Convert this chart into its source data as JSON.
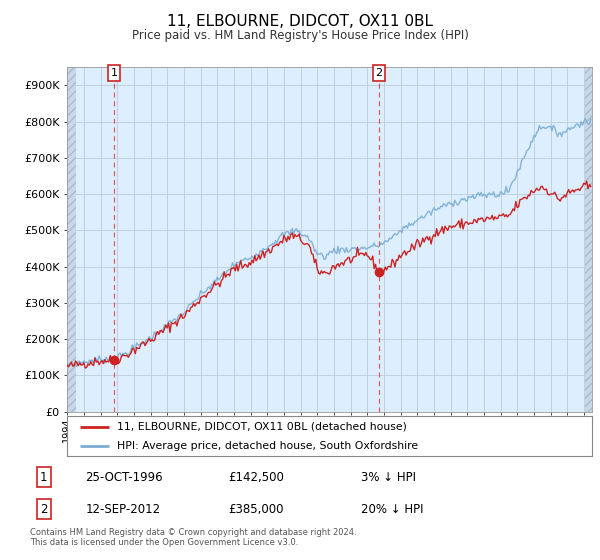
{
  "title": "11, ELBOURNE, DIDCOT, OX11 0BL",
  "subtitle": "Price paid vs. HM Land Registry's House Price Index (HPI)",
  "xlim_start": 1994.0,
  "xlim_end": 2025.5,
  "ylim_bottom": 0,
  "ylim_top": 950000,
  "yticks": [
    0,
    100000,
    200000,
    300000,
    400000,
    500000,
    600000,
    700000,
    800000,
    900000
  ],
  "ytick_labels": [
    "£0",
    "£100K",
    "£200K",
    "£300K",
    "£400K",
    "£500K",
    "£600K",
    "£700K",
    "£800K",
    "£900K"
  ],
  "hpi_color": "#7aadd4",
  "price_color": "#cc2222",
  "marker_color": "#cc2222",
  "plot_bg": "#ddeeff",
  "sale1_x": 1996.81,
  "sale1_y": 142500,
  "sale2_x": 2012.71,
  "sale2_y": 385000,
  "legend_line1": "11, ELBOURNE, DIDCOT, OX11 0BL (detached house)",
  "legend_line2": "HPI: Average price, detached house, South Oxfordshire",
  "annot1_label": "1",
  "annot2_label": "2",
  "annot1_date": "25-OCT-1996",
  "annot1_price": "£142,500",
  "annot1_hpi": "3% ↓ HPI",
  "annot2_date": "12-SEP-2012",
  "annot2_price": "£385,000",
  "annot2_hpi": "20% ↓ HPI",
  "footer": "Contains HM Land Registry data © Crown copyright and database right 2024.\nThis data is licensed under the Open Government Licence v3.0.",
  "bg_color": "#ffffff",
  "grid_color": "#bbccdd",
  "hatch_color": "#c8d8e8"
}
